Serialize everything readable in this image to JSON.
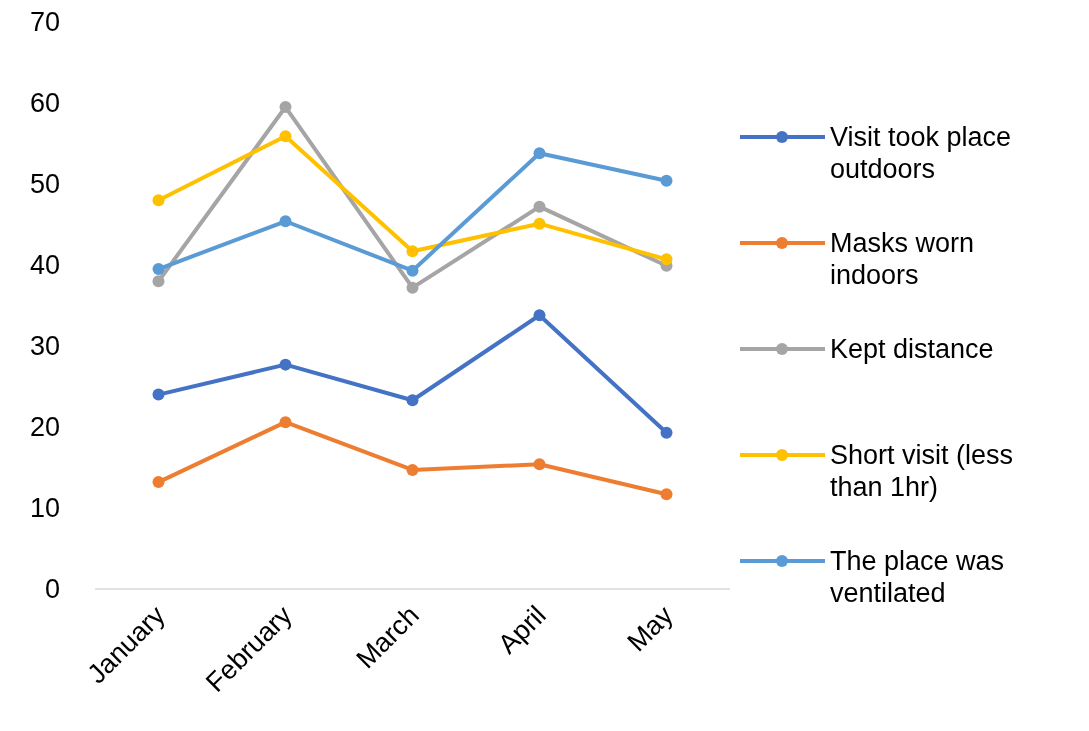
{
  "chart_data": {
    "type": "line",
    "categories": [
      "January",
      "February",
      "March",
      "April",
      "May"
    ],
    "series": [
      {
        "name": "Visit took place outdoors",
        "color": "#4472c4",
        "values": [
          24.0,
          27.7,
          23.3,
          33.8,
          19.3
        ]
      },
      {
        "name": "Masks worn indoors",
        "color": "#ed7d31",
        "values": [
          13.2,
          20.6,
          14.7,
          15.4,
          11.7
        ]
      },
      {
        "name": "Kept distance",
        "color": "#a5a5a5",
        "values": [
          38.0,
          59.5,
          37.2,
          47.2,
          39.9
        ]
      },
      {
        "name": "Short visit (less than 1hr)",
        "color": "#ffc000",
        "values": [
          48.0,
          55.9,
          41.7,
          45.1,
          40.7
        ]
      },
      {
        "name": "The place was ventilated",
        "color": "#5b9bd5",
        "values": [
          39.5,
          45.4,
          39.3,
          53.8,
          50.4
        ]
      }
    ],
    "ylim": [
      0,
      70
    ],
    "yticks": [
      0,
      10,
      20,
      30,
      40,
      50,
      60,
      70
    ],
    "grid": false,
    "legend": "right",
    "marker": "circle",
    "line_style": "solid"
  }
}
